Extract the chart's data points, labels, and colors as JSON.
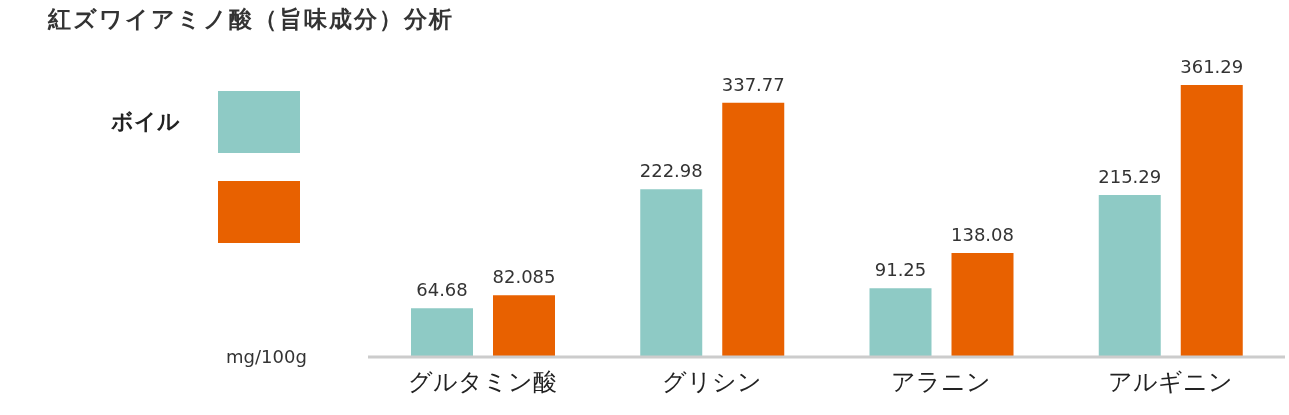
{
  "chart_data": {
    "type": "bar",
    "title": "紅ズワイアミノ酸（旨味成分）分析",
    "annotations": [
      "mg/100g"
    ],
    "categories": [
      "グルタミン酸",
      "グリシン",
      "アラニン",
      "アルギニン"
    ],
    "series": [
      {
        "name": "ボイル",
        "color": "#8ecac5",
        "values": [
          64.68,
          222.98,
          91.25,
          215.29
        ]
      },
      {
        "color": "#e86100",
        "values": [
          82.085,
          337.77,
          138.08,
          361.29
        ]
      }
    ],
    "data_labels": true,
    "legend": "left"
  }
}
